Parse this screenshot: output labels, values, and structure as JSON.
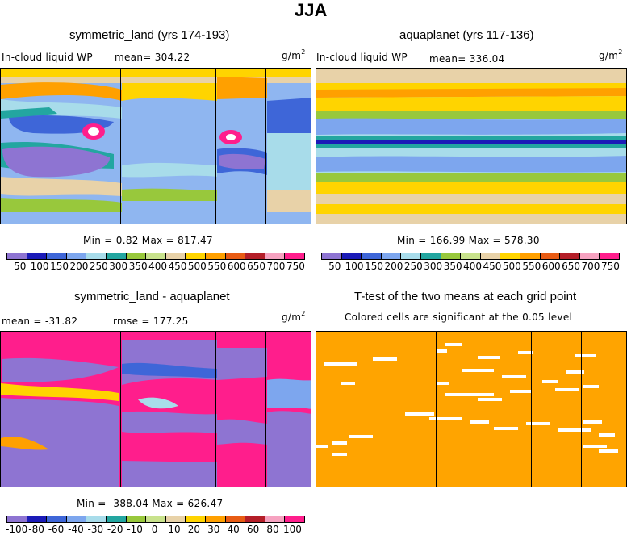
{
  "figure_title": "JJA",
  "units_base": "g/m",
  "units_exp": "2",
  "chart_data": [
    {
      "type": "heatmap",
      "title": "symmetric_land (yrs 174-193)",
      "variable": "In-cloud liquid WP",
      "mean_label": "mean= 304.22",
      "min_max": "Min =    0.82 Max = 817.47",
      "colorbar_ticks": [
        "50",
        "100",
        "150",
        "200",
        "250",
        "300",
        "350",
        "400",
        "450",
        "500",
        "550",
        "600",
        "650",
        "700",
        "750"
      ],
      "colorbar_colors": [
        "#8e74d2",
        "#1b1bb8",
        "#3e66d8",
        "#7da6ee",
        "#a8dcea",
        "#23a6a0",
        "#98c83c",
        "#c8e28c",
        "#e8d2a8",
        "#ffd400",
        "#ffa000",
        "#e85c14",
        "#b41e28",
        "#f6a2c0",
        "#ff1e8c"
      ]
    },
    {
      "type": "heatmap",
      "title": "aquaplanet (yrs 117-136)",
      "variable": "In-cloud liquid WP",
      "mean_label": "mean= 336.04",
      "min_max": "Min = 166.99 Max = 578.30",
      "colorbar_ticks": [
        "50",
        "100",
        "150",
        "200",
        "250",
        "300",
        "350",
        "400",
        "450",
        "500",
        "550",
        "600",
        "650",
        "700",
        "750"
      ]
    },
    {
      "type": "heatmap",
      "title": "symmetric_land - aquaplanet",
      "mean_label": "mean = -31.82",
      "rmse_label": "rmse = 177.25",
      "min_max": "Min = -388.04 Max = 626.47",
      "colorbar_ticks": [
        "-100",
        "-80",
        "-60",
        "-40",
        "-30",
        "-20",
        "-10",
        "0",
        "10",
        "20",
        "30",
        "40",
        "60",
        "80",
        "100"
      ]
    },
    {
      "type": "heatmap",
      "title": "T-test of the two means at each grid point",
      "subtitle": "Colored cells are significant at the 0.05 level",
      "significance_color": "#ffa400"
    }
  ]
}
